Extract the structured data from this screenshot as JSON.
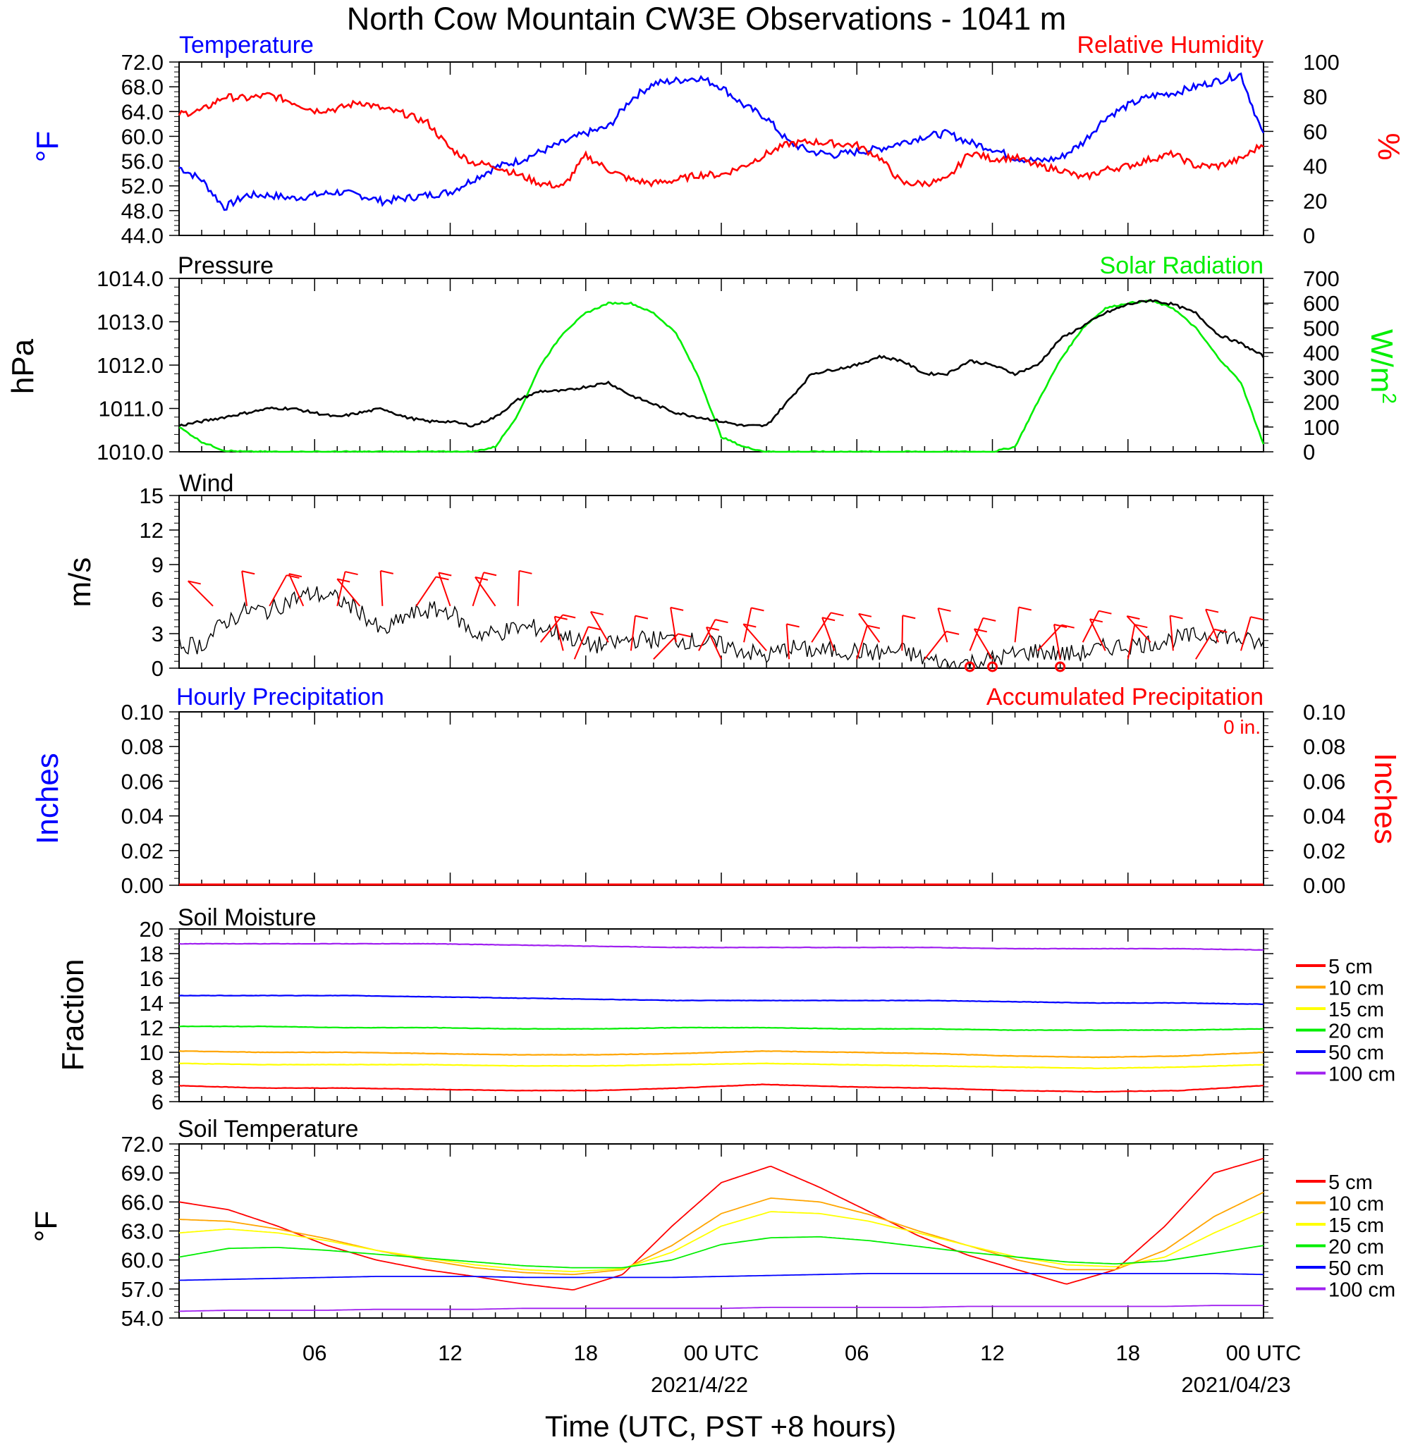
{
  "title": "North Cow Mountain CW3E Observations - 1041 m",
  "xlabel": "Time (UTC, PST +8 hours)",
  "x_ticks": [
    "06",
    "12",
    "18",
    "00 UTC",
    "06",
    "12",
    "18",
    "00 UTC"
  ],
  "date_labels": [
    "2021/4/22",
    "2021/04/23"
  ],
  "colors": {
    "temp": "#0000ff",
    "rh": "#ff0000",
    "pressure": "#000000",
    "solar": "#00ee00",
    "wind": "#000000",
    "barb": "#ff0000",
    "hourly": "#0000ff",
    "accum": "#ff0000",
    "5cm": "#ff0000",
    "10cm": "#ffa500",
    "15cm": "#ffff00",
    "20cm": "#00ee00",
    "50cm": "#0000ff",
    "100cm": "#a020f0"
  },
  "chart_data": [
    {
      "type": "line",
      "name": "Temperature / Relative Humidity",
      "title_left": "Temperature",
      "title_right": "Relative Humidity",
      "ylabel_left": "oF",
      "ylabel_right": "%",
      "ylim_left": [
        44,
        72
      ],
      "ylim_right": [
        0,
        100
      ],
      "yticks_left": [
        "44.0",
        "48.0",
        "52.0",
        "56.0",
        "60.0",
        "64.0",
        "68.0",
        "72.0"
      ],
      "yticks_right": [
        "0",
        "20",
        "40",
        "60",
        "80",
        "100"
      ],
      "x_hours": [
        0,
        1,
        2,
        3,
        4,
        5,
        6,
        7,
        8,
        9,
        10,
        11,
        12,
        13,
        14,
        15,
        16,
        17,
        18,
        19,
        20,
        21,
        22,
        23,
        24,
        25,
        26,
        27,
        28,
        29,
        30,
        31,
        32,
        33,
        34,
        35,
        36,
        37,
        38,
        39,
        40,
        41,
        42,
        43,
        44,
        45,
        46,
        47,
        48
      ],
      "series": [
        {
          "name": "Temperature",
          "axis": "left",
          "color": "temp",
          "values": [
            55,
            53,
            48.5,
            50.5,
            50.5,
            50,
            50.5,
            51,
            50.5,
            49.5,
            50,
            50.5,
            51,
            53,
            55,
            56,
            57.5,
            59,
            60.5,
            61.5,
            66,
            68.5,
            69,
            69.5,
            68,
            65,
            63,
            59,
            57.5,
            57,
            57.5,
            58,
            59,
            60,
            60.5,
            59,
            58,
            56.5,
            56,
            56.5,
            59,
            63,
            65,
            66.5,
            67,
            68,
            69,
            70,
            60
          ]
        },
        {
          "name": "Relative Humidity",
          "axis": "right",
          "color": "rh",
          "values": [
            70,
            72,
            80,
            79,
            81,
            77,
            72,
            73,
            77,
            73,
            70,
            65,
            50,
            42,
            40,
            35,
            30,
            28,
            46,
            38,
            32,
            30,
            32,
            35,
            35,
            40,
            47,
            53,
            54,
            53,
            52,
            45,
            30,
            30,
            32,
            48,
            44,
            45,
            40,
            38,
            33,
            38,
            40,
            44,
            47,
            40,
            40,
            44,
            53
          ]
        }
      ]
    },
    {
      "type": "line",
      "name": "Pressure / Solar Radiation",
      "title_left": "Pressure",
      "title_right": "Solar Radiation",
      "ylabel_left": "hPa",
      "ylabel_right": "W/m2",
      "ylim_left": [
        1010,
        1014
      ],
      "ylim_right": [
        0,
        700
      ],
      "yticks_left": [
        "1010.0",
        "1011.0",
        "1012.0",
        "1013.0",
        "1014.0"
      ],
      "yticks_right": [
        "0",
        "100",
        "200",
        "300",
        "400",
        "500",
        "600",
        "700"
      ],
      "series": [
        {
          "name": "Pressure",
          "axis": "left",
          "color": "pressure",
          "values": [
            1010.6,
            1010.7,
            1010.8,
            1010.9,
            1011.0,
            1011.0,
            1010.9,
            1010.8,
            1010.9,
            1011.0,
            1010.8,
            1010.7,
            1010.7,
            1010.6,
            1010.8,
            1011.2,
            1011.4,
            1011.4,
            1011.5,
            1011.6,
            1011.3,
            1011.1,
            1010.9,
            1010.8,
            1010.7,
            1010.6,
            1010.6,
            1011.2,
            1011.8,
            1011.9,
            1012.0,
            1012.2,
            1012.1,
            1011.8,
            1011.8,
            1012.1,
            1012.0,
            1011.8,
            1012.0,
            1012.6,
            1012.9,
            1013.2,
            1013.4,
            1013.5,
            1013.4,
            1013.2,
            1012.7,
            1012.5,
            1012.2
          ]
        },
        {
          "name": "Solar Radiation",
          "axis": "right",
          "color": "solar",
          "values": [
            100,
            40,
            5,
            0,
            0,
            0,
            0,
            0,
            0,
            0,
            0,
            0,
            0,
            0,
            20,
            150,
            350,
            480,
            560,
            600,
            600,
            560,
            480,
            300,
            60,
            20,
            0,
            0,
            0,
            0,
            0,
            0,
            0,
            0,
            0,
            0,
            0,
            20,
            200,
            370,
            500,
            580,
            600,
            610,
            580,
            500,
            380,
            280,
            30
          ]
        }
      ]
    },
    {
      "type": "line",
      "name": "Wind",
      "title_left": "Wind",
      "ylabel_left": "m/s",
      "ylim_left": [
        0,
        15
      ],
      "yticks_left": [
        "0",
        "3",
        "6",
        "9",
        "12",
        "15"
      ],
      "series": [
        {
          "name": "Wind speed",
          "axis": "left",
          "color": "wind",
          "values": [
            2,
            2,
            4,
            5,
            5,
            6,
            6.5,
            6,
            5,
            3,
            4.5,
            5,
            5,
            3,
            3,
            3.5,
            3.5,
            3,
            2,
            2,
            2.5,
            2.5,
            2.5,
            2.3,
            2,
            1.5,
            1,
            1.8,
            1.5,
            1.5,
            1.5,
            1.3,
            1.5,
            0.8,
            0.3,
            0.5,
            0.8,
            1.2,
            1.5,
            1.2,
            1.3,
            1.8,
            2,
            2.2,
            2.5,
            2.8,
            3,
            2.5,
            2
          ]
        }
      ],
      "barbs_x_hours": [
        1.5,
        3,
        4,
        5.5,
        7,
        8,
        9,
        10.5,
        12,
        13,
        14,
        15,
        16,
        17,
        17.5,
        19,
        20,
        21,
        22,
        23,
        24,
        25,
        26,
        27,
        28,
        29,
        30,
        31,
        32,
        33,
        34,
        35,
        36,
        37,
        38,
        39,
        40,
        41,
        42,
        43,
        44,
        45,
        46,
        47
      ],
      "calm_x_hours": [
        35,
        36,
        39
      ]
    },
    {
      "type": "line",
      "name": "Precipitation",
      "title_left": "Hourly Precipitation",
      "title_right": "Accumulated Precipitation",
      "total_label": "0 in.",
      "ylabel_left": "Inches",
      "ylabel_right": "Inches",
      "ylim_left": [
        0,
        0.1
      ],
      "ylim_right": [
        0,
        0.1
      ],
      "yticks_left": [
        "0.00",
        "0.02",
        "0.04",
        "0.06",
        "0.08",
        "0.10"
      ],
      "yticks_right": [
        "0.00",
        "0.02",
        "0.04",
        "0.06",
        "0.08",
        "0.10"
      ],
      "series": [
        {
          "name": "Accumulated Precipitation",
          "axis": "left",
          "color": "accum",
          "values": [
            0,
            0
          ]
        }
      ]
    },
    {
      "type": "line",
      "name": "Soil Moisture",
      "title_left": "Soil Moisture",
      "ylabel_left": "Fraction",
      "ylim_left": [
        6,
        20
      ],
      "yticks_left": [
        "6",
        "8",
        "10",
        "12",
        "14",
        "16",
        "18",
        "20"
      ],
      "series": [
        {
          "name": "5 cm",
          "color": "5cm",
          "values": [
            7.3,
            7.1,
            7.1,
            7.0,
            6.9,
            6.9,
            7.1,
            7.4,
            7.2,
            7.1,
            6.9,
            6.8,
            6.9,
            7.3
          ]
        },
        {
          "name": "10 cm",
          "color": "10cm",
          "values": [
            10.1,
            10.0,
            10.0,
            9.9,
            9.8,
            9.8,
            9.9,
            10.1,
            10.0,
            9.9,
            9.7,
            9.6,
            9.7,
            10.0
          ]
        },
        {
          "name": "15 cm",
          "color": "15cm",
          "values": [
            9.1,
            9.0,
            9.0,
            9.0,
            8.9,
            8.9,
            9.0,
            9.1,
            9.0,
            8.9,
            8.8,
            8.7,
            8.8,
            9.0
          ]
        },
        {
          "name": "20 cm",
          "color": "20cm",
          "values": [
            12.1,
            12.1,
            12.0,
            12.0,
            11.9,
            11.9,
            12.0,
            12.0,
            11.9,
            11.9,
            11.8,
            11.8,
            11.8,
            11.9
          ]
        },
        {
          "name": "50 cm",
          "color": "50cm",
          "values": [
            14.6,
            14.6,
            14.6,
            14.5,
            14.4,
            14.3,
            14.2,
            14.2,
            14.2,
            14.2,
            14.1,
            14.0,
            14.0,
            13.9
          ]
        },
        {
          "name": "100 cm",
          "color": "100cm",
          "values": [
            18.8,
            18.8,
            18.8,
            18.8,
            18.7,
            18.6,
            18.5,
            18.5,
            18.5,
            18.5,
            18.4,
            18.4,
            18.4,
            18.3
          ]
        }
      ]
    },
    {
      "type": "line",
      "name": "Soil Temperature",
      "title_left": "Soil Temperature",
      "ylabel_left": "oF",
      "ylim_left": [
        54,
        72
      ],
      "yticks_left": [
        "54.0",
        "57.0",
        "60.0",
        "63.0",
        "66.0",
        "69.0",
        "72.0"
      ],
      "series": [
        {
          "name": "5 cm",
          "color": "5cm",
          "values": [
            66.0,
            65.2,
            63.5,
            61.5,
            60.0,
            59.0,
            58.3,
            57.5,
            56.9,
            58.5,
            63.5,
            68.0,
            69.7,
            67.5,
            65.0,
            62.5,
            60.5,
            59.0,
            57.5,
            59.0,
            63.5,
            69.0,
            70.5
          ]
        },
        {
          "name": "10 cm",
          "color": "10cm",
          "values": [
            64.2,
            64.0,
            63.2,
            62.2,
            61.0,
            60.0,
            59.2,
            58.7,
            58.5,
            59.0,
            61.5,
            64.8,
            66.4,
            66.0,
            64.7,
            63.0,
            61.5,
            60.0,
            59.0,
            59.0,
            61.0,
            64.5,
            67.0
          ]
        },
        {
          "name": "15 cm",
          "color": "15cm",
          "values": [
            62.8,
            63.2,
            62.8,
            62.0,
            61.0,
            60.2,
            59.5,
            59.0,
            58.8,
            59.1,
            60.8,
            63.5,
            65.0,
            64.8,
            64.0,
            62.8,
            61.5,
            60.3,
            59.5,
            59.3,
            60.3,
            62.8,
            65.0
          ]
        },
        {
          "name": "20 cm",
          "color": "20cm",
          "values": [
            60.3,
            61.2,
            61.3,
            61.0,
            60.6,
            60.2,
            59.8,
            59.4,
            59.2,
            59.2,
            60.0,
            61.6,
            62.3,
            62.4,
            62.0,
            61.4,
            60.8,
            60.3,
            59.8,
            59.6,
            59.9,
            60.7,
            61.5
          ]
        },
        {
          "name": "50 cm",
          "color": "50cm",
          "values": [
            57.9,
            58.0,
            58.1,
            58.2,
            58.3,
            58.3,
            58.3,
            58.2,
            58.2,
            58.2,
            58.2,
            58.3,
            58.4,
            58.5,
            58.6,
            58.6,
            58.6,
            58.6,
            58.6,
            58.6,
            58.6,
            58.6,
            58.5
          ]
        },
        {
          "name": "100 cm",
          "color": "100cm",
          "values": [
            54.7,
            54.8,
            54.8,
            54.8,
            54.9,
            54.9,
            54.9,
            55.0,
            55.0,
            55.0,
            55.0,
            55.0,
            55.1,
            55.1,
            55.1,
            55.1,
            55.2,
            55.2,
            55.2,
            55.2,
            55.2,
            55.3,
            55.3
          ]
        }
      ]
    }
  ]
}
